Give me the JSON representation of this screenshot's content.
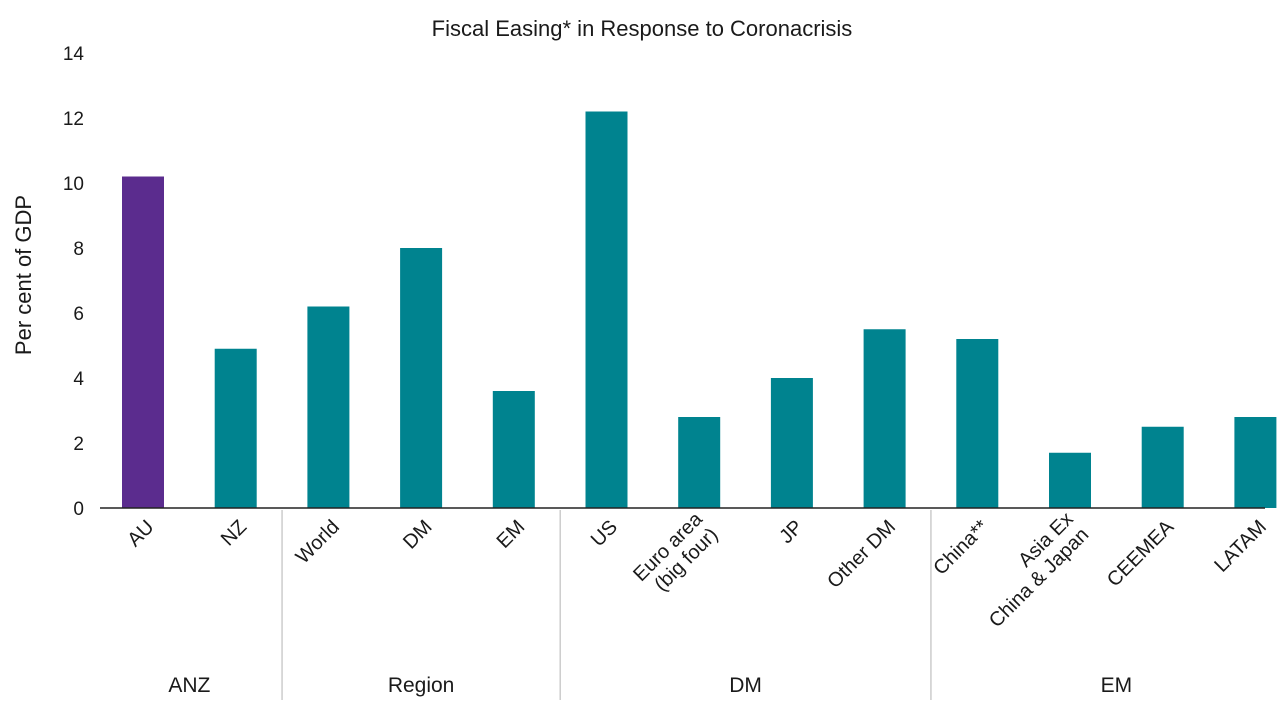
{
  "chart_data": {
    "type": "bar",
    "title": "Fiscal Easing* in Response to Coronacrisis",
    "xlabel": "",
    "ylabel": "Per cent of GDP",
    "ylim": [
      0,
      14
    ],
    "yticks": [
      0,
      2,
      4,
      6,
      8,
      10,
      12,
      14
    ],
    "grid": false,
    "legend": "none",
    "categories": [
      [
        "AU"
      ],
      [
        "NZ"
      ],
      [
        "World"
      ],
      [
        "DM"
      ],
      [
        "EM"
      ],
      [
        "US"
      ],
      [
        "Euro area",
        "(big four)"
      ],
      [
        "JP"
      ],
      [
        "Other DM"
      ],
      [
        "China**"
      ],
      [
        "Asia Ex",
        "China & Japan"
      ],
      [
        "CEEMEA"
      ],
      [
        "LATAM"
      ]
    ],
    "values": [
      10.2,
      4.9,
      6.2,
      8.0,
      3.6,
      12.2,
      2.8,
      4.0,
      5.5,
      5.2,
      1.7,
      2.5,
      2.8
    ],
    "bar_colors": [
      "#5b2c8e",
      "#00838f",
      "#00838f",
      "#00838f",
      "#00838f",
      "#00838f",
      "#00838f",
      "#00838f",
      "#00838f",
      "#00838f",
      "#00838f",
      "#00838f",
      "#00838f"
    ],
    "groups": [
      {
        "label": "ANZ",
        "start": 0,
        "end": 1
      },
      {
        "label": "Region",
        "start": 2,
        "end": 4
      },
      {
        "label": "DM",
        "start": 5,
        "end": 8
      },
      {
        "label": "EM",
        "start": 9,
        "end": 12
      }
    ]
  }
}
